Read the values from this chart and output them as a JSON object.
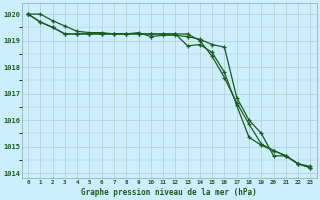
{
  "title": "Graphe pression niveau de la mer (hPa)",
  "bg_color": "#cceeff",
  "grid_color": "#b0cccc",
  "line_color": "#1a5c1a",
  "x_labels": [
    "0",
    "1",
    "2",
    "3",
    "4",
    "5",
    "6",
    "7",
    "8",
    "9",
    "10",
    "11",
    "12",
    "13",
    "14",
    "15",
    "16",
    "17",
    "18",
    "19",
    "20",
    "21",
    "22",
    "23"
  ],
  "ylim": [
    1013.8,
    1020.4
  ],
  "yticks": [
    1014,
    1015,
    1016,
    1017,
    1018,
    1019,
    1020
  ],
  "line1": [
    1020.0,
    1020.0,
    1019.75,
    1019.55,
    1019.35,
    1019.3,
    1019.3,
    1019.25,
    1019.25,
    1019.3,
    1019.15,
    1019.2,
    1019.2,
    1019.15,
    1019.05,
    1018.85,
    1018.75,
    1016.85,
    1016.0,
    1015.5,
    1014.65,
    1014.65,
    1014.35,
    1014.25
  ],
  "line2": [
    1020.0,
    1019.7,
    1019.5,
    1019.25,
    1019.25,
    1019.25,
    1019.25,
    1019.25,
    1019.25,
    1019.25,
    1019.25,
    1019.25,
    1019.25,
    1019.25,
    1019.0,
    1018.4,
    1017.6,
    1016.65,
    1015.85,
    1015.1,
    1014.85,
    1014.65,
    1014.35,
    1014.2
  ],
  "line3": [
    1020.0,
    1019.7,
    1019.5,
    1019.25,
    1019.25,
    1019.25,
    1019.25,
    1019.25,
    1019.25,
    1019.25,
    1019.25,
    1019.25,
    1019.25,
    1018.8,
    1018.85,
    1018.55,
    1017.8,
    1016.55,
    1015.35,
    1015.05,
    1014.85,
    1014.65,
    1014.35,
    1014.2
  ]
}
